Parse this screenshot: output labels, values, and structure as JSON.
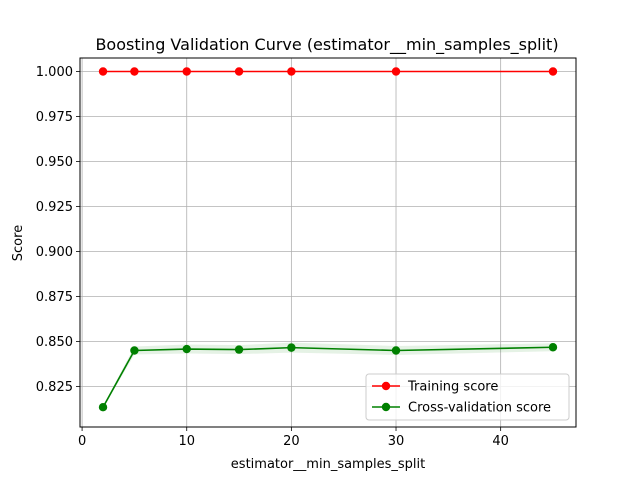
{
  "chart_data": {
    "type": "line",
    "title": "Boosting Validation Curve (estimator__min_samples_split)",
    "xlabel": "estimator__min_samples_split",
    "ylabel": "Score",
    "xlim": [
      -0.2,
      47.2
    ],
    "ylim": [
      0.8025,
      1.0075
    ],
    "x_ticks": [
      0,
      10,
      20,
      30,
      40
    ],
    "y_ticks": [
      0.825,
      0.85,
      0.875,
      0.9,
      0.925,
      0.95,
      0.975,
      1.0
    ],
    "x_tick_labels": [
      "0",
      "10",
      "20",
      "30",
      "40"
    ],
    "y_tick_labels": [
      "0.825",
      "0.850",
      "0.875",
      "0.900",
      "0.925",
      "0.950",
      "0.975",
      "1.000"
    ],
    "grid": true,
    "legend_position": "lower-right",
    "x": [
      2,
      5,
      10,
      15,
      20,
      30,
      45
    ],
    "series": [
      {
        "name": "Training score",
        "color": "#ff0000",
        "values": [
          1.0,
          1.0,
          1.0,
          1.0,
          1.0,
          1.0,
          1.0
        ],
        "band": [
          0.0,
          0.0,
          0.0,
          0.0,
          0.0,
          0.0,
          0.0
        ]
      },
      {
        "name": "Cross-validation score",
        "color": "#008000",
        "values": [
          0.8135,
          0.845,
          0.8458,
          0.8455,
          0.8466,
          0.845,
          0.8468
        ],
        "band": [
          0.0007,
          0.0022,
          0.0025,
          0.0025,
          0.0028,
          0.0025,
          0.0022
        ]
      }
    ]
  }
}
